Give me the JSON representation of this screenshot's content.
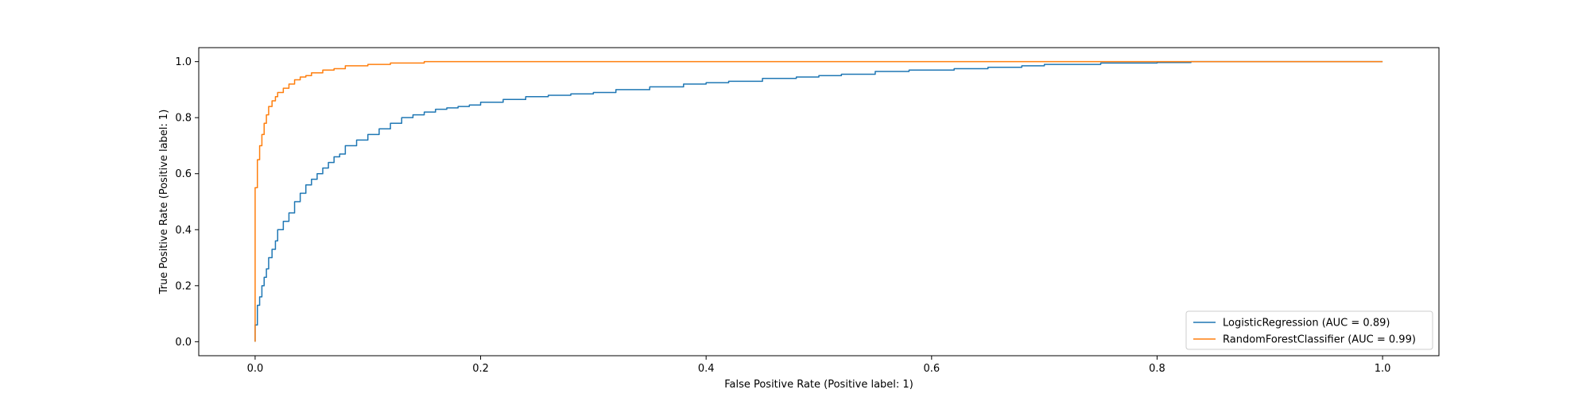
{
  "chart_data": {
    "type": "line",
    "title": "",
    "xlabel": "False Positive Rate (Positive label: 1)",
    "ylabel": "True Positive Rate (Positive label: 1)",
    "xlim": [
      -0.05,
      1.05
    ],
    "ylim": [
      -0.05,
      1.05
    ],
    "xticks": [
      0.0,
      0.2,
      0.4,
      0.6,
      0.8,
      1.0
    ],
    "yticks": [
      0.0,
      0.2,
      0.4,
      0.6,
      0.8,
      1.0
    ],
    "xtick_labels": [
      "0.0",
      "0.2",
      "0.4",
      "0.6",
      "0.8",
      "1.0"
    ],
    "ytick_labels": [
      "0.0",
      "0.2",
      "0.4",
      "0.6",
      "0.8",
      "1.0"
    ],
    "grid": false,
    "legend_position": "lower-right",
    "series": [
      {
        "name": "LogisticRegression (AUC = 0.89)",
        "color": "#1f77b4",
        "x": [
          0.0,
          0.002,
          0.004,
          0.006,
          0.008,
          0.01,
          0.012,
          0.015,
          0.018,
          0.02,
          0.025,
          0.03,
          0.035,
          0.04,
          0.045,
          0.05,
          0.055,
          0.06,
          0.065,
          0.07,
          0.075,
          0.08,
          0.09,
          0.1,
          0.11,
          0.12,
          0.13,
          0.14,
          0.15,
          0.16,
          0.17,
          0.18,
          0.19,
          0.2,
          0.22,
          0.24,
          0.26,
          0.28,
          0.3,
          0.32,
          0.35,
          0.38,
          0.4,
          0.42,
          0.45,
          0.48,
          0.5,
          0.52,
          0.55,
          0.58,
          0.6,
          0.62,
          0.65,
          0.68,
          0.7,
          0.72,
          0.75,
          0.78,
          0.8,
          0.83,
          0.85,
          0.9,
          0.95,
          1.0
        ],
        "y": [
          0.0,
          0.06,
          0.13,
          0.16,
          0.2,
          0.23,
          0.26,
          0.3,
          0.33,
          0.36,
          0.4,
          0.43,
          0.46,
          0.5,
          0.53,
          0.56,
          0.58,
          0.6,
          0.62,
          0.64,
          0.66,
          0.67,
          0.7,
          0.72,
          0.74,
          0.76,
          0.78,
          0.8,
          0.81,
          0.82,
          0.83,
          0.835,
          0.84,
          0.845,
          0.855,
          0.865,
          0.875,
          0.88,
          0.885,
          0.89,
          0.9,
          0.91,
          0.92,
          0.925,
          0.93,
          0.94,
          0.945,
          0.95,
          0.955,
          0.965,
          0.97,
          0.97,
          0.975,
          0.98,
          0.985,
          0.99,
          0.99,
          0.995,
          0.995,
          0.997,
          1.0,
          1.0,
          1.0,
          1.0
        ]
      },
      {
        "name": "RandomForestClassifier (AUC = 0.99)",
        "color": "#ff7f0e",
        "x": [
          0.0,
          0.0,
          0.002,
          0.004,
          0.006,
          0.008,
          0.01,
          0.012,
          0.015,
          0.018,
          0.02,
          0.025,
          0.03,
          0.035,
          0.04,
          0.045,
          0.05,
          0.06,
          0.07,
          0.08,
          0.1,
          0.12,
          0.15,
          0.2,
          0.3,
          0.5,
          0.7,
          1.0
        ],
        "y": [
          0.0,
          0.3,
          0.55,
          0.65,
          0.7,
          0.74,
          0.78,
          0.81,
          0.84,
          0.86,
          0.875,
          0.89,
          0.905,
          0.92,
          0.935,
          0.945,
          0.95,
          0.96,
          0.97,
          0.975,
          0.985,
          0.99,
          0.995,
          1.0,
          1.0,
          1.0,
          1.0,
          1.0
        ]
      }
    ]
  }
}
